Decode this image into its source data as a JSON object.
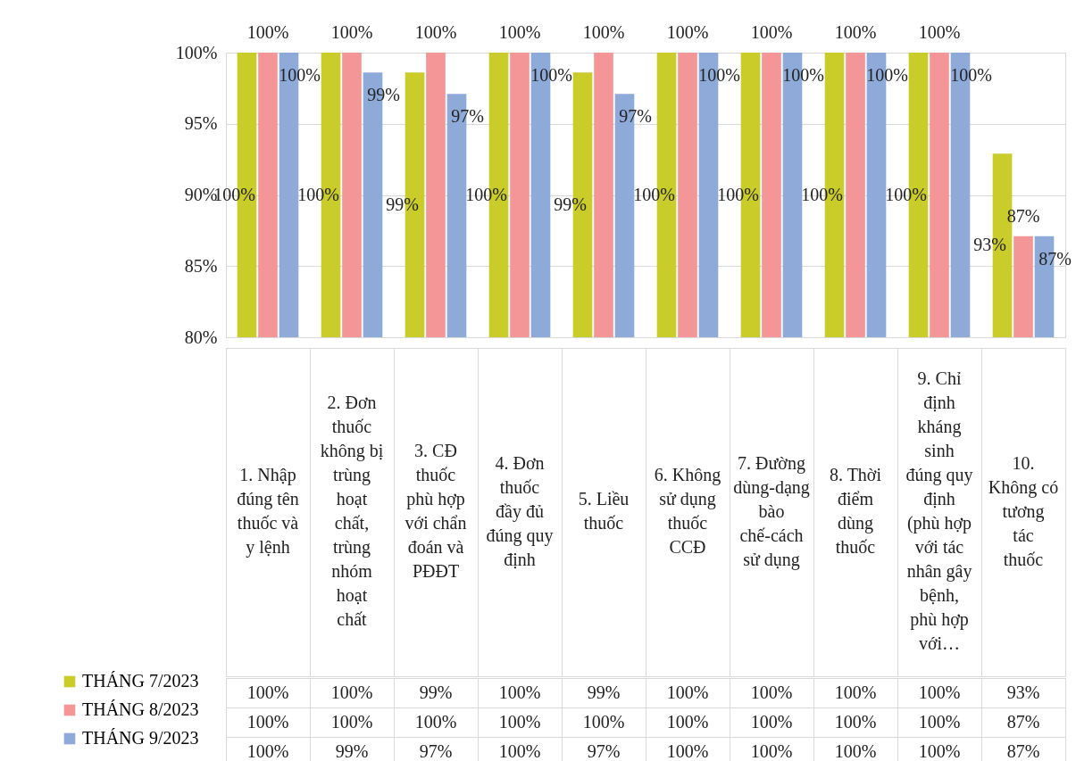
{
  "chart_data": {
    "type": "bar",
    "categories": [
      "1. Nhập đúng tên thuốc và y lệnh",
      "2. Đơn thuốc không bị trùng hoạt chất, trùng nhóm hoạt chất",
      "3. CĐ thuốc phù hợp với chẩn đoán và PĐĐT",
      "4. Đơn thuốc đầy đủ đúng quy định",
      "5. Liều thuốc",
      "6. Không sử dụng thuốc CCĐ",
      "7. Đường dùng-dạng bào chế-cách sử dụng",
      "8. Thời điểm dùng thuốc",
      "9. Chỉ định kháng sinh đúng quy định (phù hợp với tác nhân gây bệnh, phù hợp với…",
      "10. Không có tương tác thuốc"
    ],
    "series": [
      {
        "name": "THÁNG 7/2023",
        "color": "#c9cc29",
        "values": [
          100,
          100,
          98.6,
          100,
          98.6,
          100,
          100,
          100,
          100,
          92.9
        ],
        "value_labels": [
          "100%",
          "100%",
          "99%",
          "100%",
          "99%",
          "100%",
          "100%",
          "100%",
          "100%",
          "93%"
        ]
      },
      {
        "name": "THÁNG 8/2023",
        "color": "#f49698",
        "values": [
          100,
          100,
          100,
          100,
          100,
          100,
          100,
          100,
          100,
          87.1
        ],
        "value_labels": [
          "100%",
          "100%",
          "100%",
          "100%",
          "100%",
          "100%",
          "100%",
          "100%",
          "100%",
          "87%"
        ]
      },
      {
        "name": "THÁNG 9/2023",
        "color": "#8eaad8",
        "values": [
          100,
          98.6,
          97.1,
          100,
          97.1,
          100,
          100,
          100,
          100,
          87.1
        ],
        "value_labels": [
          "100%",
          "99%",
          "97%",
          "100%",
          "97%",
          "100%",
          "100%",
          "100%",
          "100%",
          "87%"
        ]
      }
    ],
    "ylim": [
      80,
      100
    ],
    "yticks": [
      {
        "value": 80,
        "label": "80%"
      },
      {
        "value": 85,
        "label": "85%"
      },
      {
        "value": 90,
        "label": "90%"
      },
      {
        "value": 95,
        "label": "95%"
      },
      {
        "value": 100,
        "label": "100%"
      }
    ],
    "grid": "y",
    "legend": "bottom left"
  }
}
